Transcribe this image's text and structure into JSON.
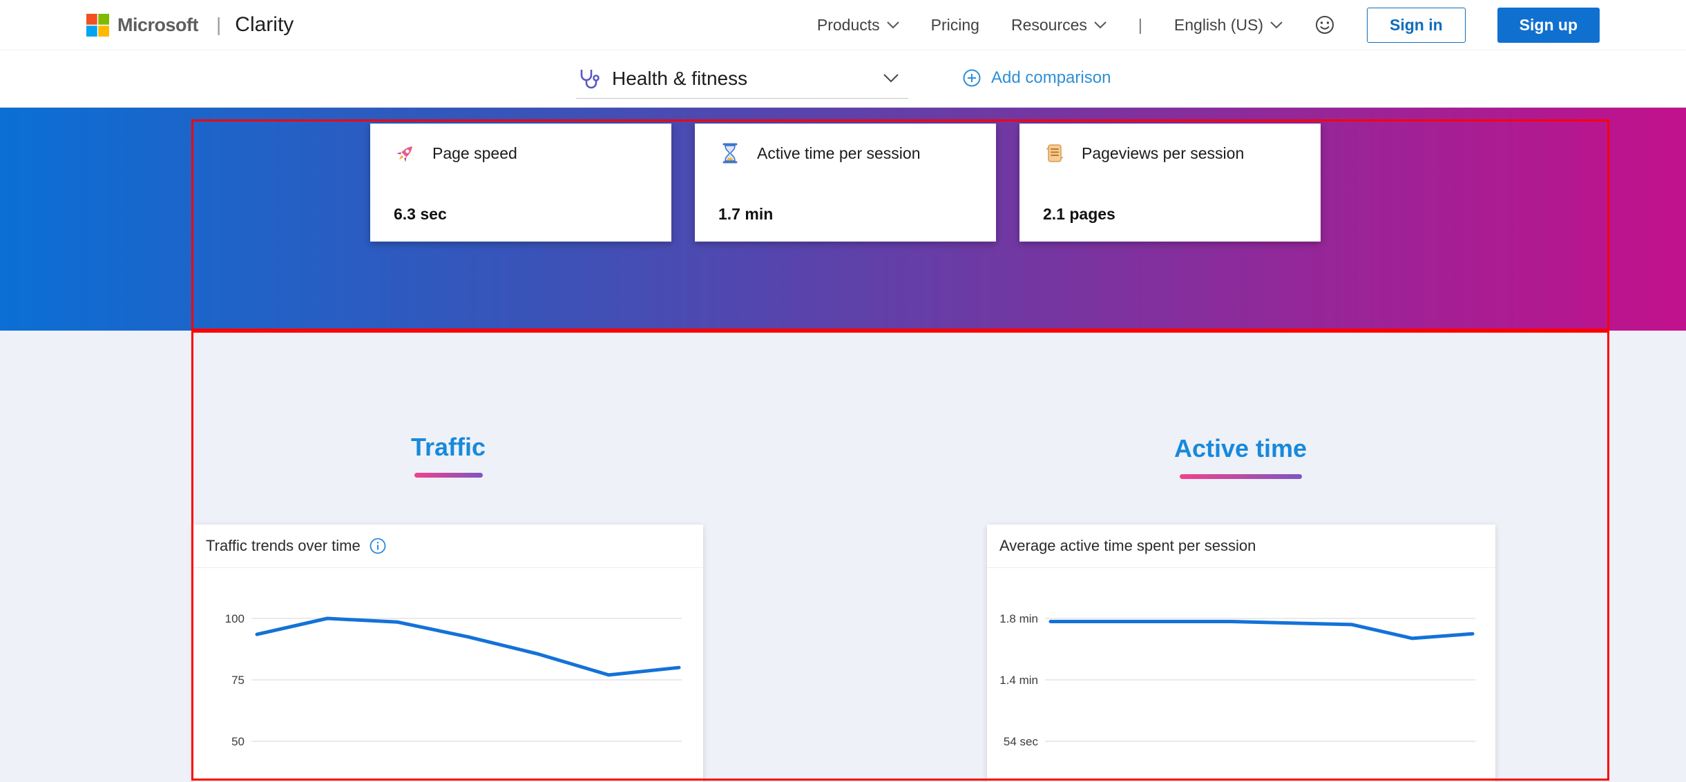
{
  "topbar": {
    "brand": {
      "microsoft": "Microsoft",
      "divider": "|",
      "product": "Clarity"
    },
    "nav": [
      {
        "label": "Products"
      },
      {
        "label": "Pricing"
      },
      {
        "label": "Resources"
      }
    ],
    "nav_divider": "|",
    "language": "English (US)",
    "signin_label": "Sign in",
    "signup_label": "Sign up"
  },
  "subnav": {
    "project_name": "Health & fitness",
    "add_comparison_label": "Add comparison"
  },
  "metric_cards": [
    {
      "icon": "rocket-icon",
      "title": "Page speed",
      "value": "6.3 sec"
    },
    {
      "icon": "hourglass-icon",
      "title": "Active time per session",
      "value": "1.7 min"
    },
    {
      "icon": "scroll-icon",
      "title": "Pageviews per session",
      "value": "2.1 pages"
    }
  ],
  "sections": [
    {
      "heading": "Traffic"
    },
    {
      "heading": "Active time"
    }
  ],
  "chart_data": [
    {
      "type": "line",
      "title": "Traffic trends over time",
      "has_info_icon": true,
      "y_ticks": [
        {
          "label": "100",
          "value": 100
        },
        {
          "label": "75",
          "value": 75
        },
        {
          "label": "50",
          "value": 50
        }
      ],
      "values": [
        93.5,
        100,
        98.5,
        92.5,
        85.5,
        77,
        80
      ],
      "ylim": [
        50,
        105
      ],
      "grid": true,
      "legend": "none",
      "line_color": "#1372d8"
    },
    {
      "type": "line",
      "title": "Average active time spent per session",
      "has_info_icon": false,
      "y_ticks": [
        {
          "label": "1.8 min",
          "value": 1.8
        },
        {
          "label": "1.4 min",
          "value": 1.4
        },
        {
          "label": "54 sec",
          "value": 0.9
        }
      ],
      "values": [
        1.78,
        1.78,
        1.78,
        1.78,
        1.77,
        1.76,
        1.67,
        1.7
      ],
      "ylim": [
        0.9,
        1.9
      ],
      "grid": true,
      "legend": "none",
      "line_color": "#1372d8"
    }
  ],
  "colors": {
    "heading_blue": "#1789dc",
    "accent_blue": "#2e8fd6",
    "button_blue": "#1070d0",
    "annotation_red": "#ff0000",
    "gradient_left": "#0b6fd4",
    "gradient_right": "#c2118c"
  }
}
